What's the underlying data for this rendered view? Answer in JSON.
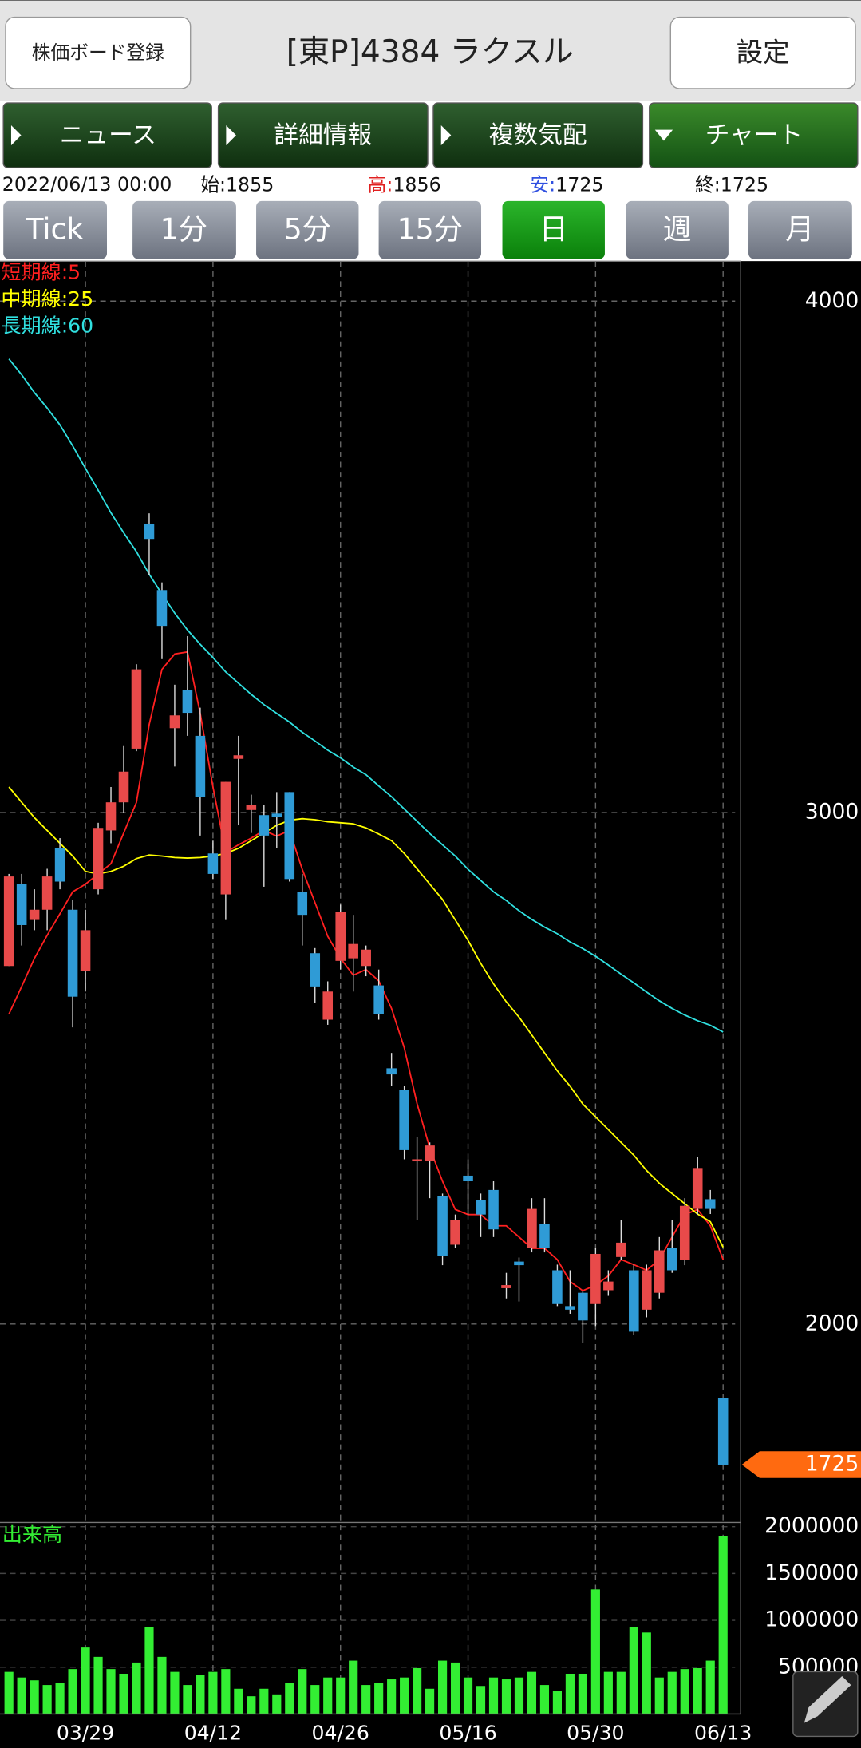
{
  "header": {
    "register_button": "株価ボード登録",
    "title": "[東P]4384 ラクスル",
    "settings_button": "設定"
  },
  "tabs": [
    "ニュース",
    "詳細情報",
    "複数気配",
    "チャート"
  ],
  "info": {
    "datetime": "2022/06/13 00:00",
    "open_label": "始:",
    "open": 1855,
    "high_label": "高:",
    "high": 1856,
    "low_label": "安:",
    "low": 1725,
    "close_label": "終:",
    "close": 1725
  },
  "timeframes": [
    "Tick",
    "1分",
    "5分",
    "15分",
    "日",
    "週",
    "月"
  ],
  "chart_data": {
    "type": "candlestick",
    "categories": [
      null,
      null,
      null,
      null,
      null,
      null,
      "03/29",
      null,
      null,
      null,
      null,
      null,
      null,
      null,
      null,
      null,
      "04/12",
      null,
      null,
      null,
      null,
      null,
      null,
      null,
      null,
      null,
      "04/26",
      null,
      null,
      null,
      null,
      null,
      null,
      null,
      null,
      null,
      "05/16",
      null,
      null,
      null,
      null,
      null,
      null,
      null,
      null,
      null,
      "05/30",
      null,
      null,
      null,
      null,
      null,
      null,
      null,
      null,
      null,
      "06/13"
    ],
    "open": [
      2700,
      2860,
      2790,
      2810,
      2930,
      2810,
      2690,
      2850,
      2965,
      3020,
      3125,
      3565,
      3435,
      3165,
      3240,
      3150,
      2920,
      2840,
      3105,
      3005,
      2995,
      2998,
      3040,
      2845,
      2725,
      2595,
      2710,
      2715,
      2700,
      2662,
      2500,
      2458,
      2318,
      2318,
      2250,
      2155,
      2290,
      2242,
      2262,
      2070,
      2122,
      2148,
      2196,
      2105,
      2035,
      2061,
      2039,
      2066,
      2131,
      2105,
      2028,
      2061,
      2148,
      2126,
      2225,
      2244,
      1855
    ],
    "high": [
      2880,
      2880,
      2850,
      2890,
      2950,
      2830,
      2810,
      2980,
      3050,
      3130,
      3290,
      3585,
      3450,
      3250,
      3345,
      3205,
      2945,
      3060,
      3150,
      3035,
      3015,
      3040,
      3040,
      2880,
      2735,
      2670,
      2820,
      2800,
      2740,
      2693,
      2530,
      2465,
      2366,
      2355,
      2255,
      2214,
      2322,
      2255,
      2279,
      2100,
      2130,
      2246,
      2246,
      2116,
      2105,
      2065,
      2148,
      2105,
      2203,
      2116,
      2116,
      2170,
      2203,
      2246,
      2327,
      2262,
      1856
    ],
    "low": [
      2700,
      2740,
      2770,
      2770,
      2850,
      2580,
      2650,
      2840,
      2940,
      3000,
      3120,
      3465,
      3300,
      3090,
      3150,
      2955,
      2870,
      2790,
      2975,
      2960,
      2855,
      2930,
      2865,
      2740,
      2628,
      2585,
      2693,
      2650,
      2680,
      2595,
      2465,
      2322,
      2203,
      2246,
      2115,
      2148,
      2214,
      2170,
      2170,
      2050,
      2044,
      2140,
      2140,
      2035,
      2020,
      1963,
      1996,
      2055,
      2125,
      1978,
      2013,
      2050,
      2100,
      2115,
      2214,
      2215,
      1725
    ],
    "close": [
      2875,
      2780,
      2810,
      2875,
      2865,
      2640,
      2770,
      2970,
      3020,
      3080,
      3280,
      3535,
      3365,
      3190,
      3195,
      3030,
      2880,
      3060,
      3112,
      3015,
      2955,
      2992,
      2870,
      2800,
      2660,
      2650,
      2806,
      2743,
      2732,
      2606,
      2488,
      2340,
      2322,
      2349,
      2133,
      2203,
      2279,
      2214,
      2185,
      2076,
      2115,
      2225,
      2148,
      2039,
      2028,
      2007,
      2137,
      2083,
      2159,
      1985,
      2105,
      2144,
      2105,
      2231,
      2305,
      2225,
      1725
    ],
    "up_color": "#e84a4a",
    "down_color": "#2f9bd6",
    "lines": [
      {
        "name": "短期線:5",
        "color": "#ff2020",
        "values": [
          2606,
          2660,
          2715,
          2760,
          2802,
          2845,
          2860,
          2880,
          2900,
          2960,
          3020,
          3172,
          3280,
          3310,
          3314,
          3194,
          3050,
          2922,
          2937,
          2950,
          2965,
          2954,
          2965,
          2889,
          2824,
          2758,
          2715,
          2682,
          2693,
          2671,
          2617,
          2540,
          2431,
          2344,
          2279,
          2224,
          2214,
          2214,
          2192,
          2192,
          2170,
          2148,
          2148,
          2126,
          2083,
          2065,
          2076,
          2094,
          2126,
          2116,
          2105,
          2126,
          2170,
          2214,
          2224,
          2192,
          2126
        ]
      },
      {
        "name": "中期線:25",
        "color": "#ffff00",
        "values": [
          3050,
          3020,
          2990,
          2965,
          2940,
          2915,
          2885,
          2880,
          2885,
          2895,
          2910,
          2917,
          2915,
          2912,
          2911,
          2912,
          2915,
          2920,
          2930,
          2945,
          2960,
          2975,
          2985,
          2988,
          2986,
          2982,
          2980,
          2978,
          2970,
          2958,
          2945,
          2920,
          2890,
          2860,
          2830,
          2790,
          2750,
          2705,
          2665,
          2630,
          2600,
          2565,
          2530,
          2495,
          2465,
          2430,
          2405,
          2380,
          2355,
          2330,
          2300,
          2275,
          2255,
          2235,
          2215,
          2200,
          2150
        ]
      },
      {
        "name": "長期線:60",
        "color": "#30e0e0",
        "values": [
          3887,
          3856,
          3821,
          3791,
          3758,
          3717,
          3673,
          3630,
          3586,
          3547,
          3510,
          3466,
          3427,
          3390,
          3357,
          3329,
          3303,
          3275,
          3253,
          3231,
          3211,
          3194,
          3177,
          3157,
          3140,
          3122,
          3107,
          3089,
          3074,
          3052,
          3031,
          3007,
          2983,
          2959,
          2937,
          2915,
          2889,
          2867,
          2845,
          2828,
          2808,
          2791,
          2776,
          2763,
          2747,
          2734,
          2719,
          2702,
          2684,
          2667,
          2649,
          2632,
          2617,
          2604,
          2593,
          2584,
          2571
        ]
      }
    ],
    "ylim": [
      1612,
      4078
    ],
    "yticks": [
      2000,
      3000,
      4000
    ],
    "grid": true,
    "last_price": 1725,
    "volume": {
      "label": "出来高",
      "color": "#33ee33",
      "ylim": [
        0,
        2045000
      ],
      "yticks": [
        500000,
        1000000,
        1500000,
        2000000
      ],
      "values": [
        450000,
        390000,
        360000,
        310000,
        330000,
        480000,
        710000,
        610000,
        480000,
        430000,
        550000,
        930000,
        610000,
        450000,
        310000,
        420000,
        450000,
        480000,
        270000,
        190000,
        270000,
        210000,
        330000,
        480000,
        310000,
        390000,
        390000,
        570000,
        310000,
        330000,
        370000,
        390000,
        490000,
        270000,
        570000,
        550000,
        390000,
        300000,
        390000,
        370000,
        390000,
        450000,
        310000,
        250000,
        430000,
        430000,
        1330000,
        450000,
        450000,
        930000,
        870000,
        390000,
        450000,
        480000,
        490000,
        570000,
        1900000
      ]
    }
  }
}
